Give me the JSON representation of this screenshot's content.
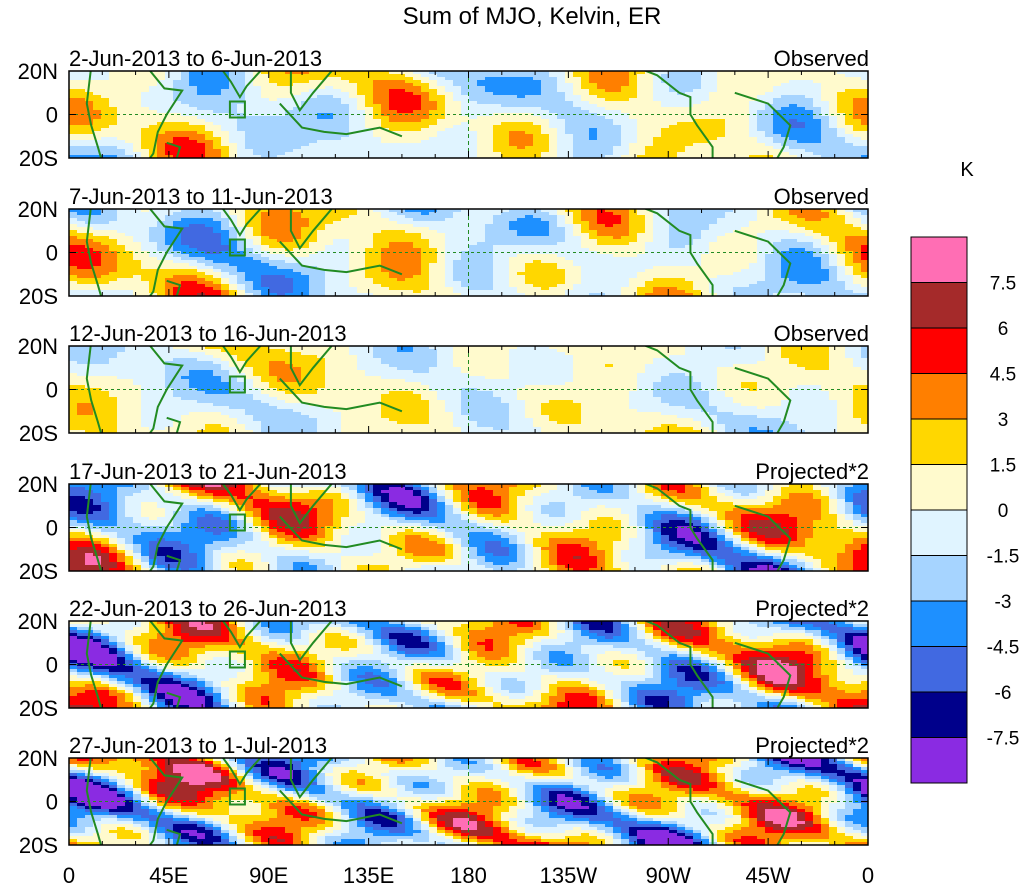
{
  "chart_data": {
    "type": "heatmap",
    "title": "Sum of MJO, Kelvin, ER",
    "units": "K",
    "x_ticks": [
      "0",
      "45E",
      "90E",
      "135E",
      "180",
      "135W",
      "90W",
      "45W",
      "0"
    ],
    "y_ticks": [
      "20N",
      "0",
      "20S"
    ],
    "lon_range": [
      0,
      360
    ],
    "lat_range": [
      -20,
      20
    ],
    "colorbar": {
      "levels": [
        "7.5",
        "6",
        "4.5",
        "3",
        "1.5",
        "0",
        "-1.5",
        "-3",
        "-4.5",
        "-6",
        "-7.5"
      ],
      "colors": [
        "#ff6eb4",
        "#a52a2a",
        "#ff0000",
        "#ff7f00",
        "#ffd700",
        "#fffacd",
        "#e0f4ff",
        "#a6d4ff",
        "#1e90ff",
        "#4169e1",
        "#00008b",
        "#8a2be2"
      ]
    },
    "panels": [
      {
        "period": "2-Jun-2013 to 6-Jun-2013",
        "label": "Observed"
      },
      {
        "period": "7-Jun-2013 to 11-Jun-2013",
        "label": "Observed"
      },
      {
        "period": "12-Jun-2013 to 16-Jun-2013",
        "label": "Observed"
      },
      {
        "period": "17-Jun-2013 to 21-Jun-2013",
        "label": "Projected*2"
      },
      {
        "period": "22-Jun-2013 to 26-Jun-2013",
        "label": "Projected*2"
      },
      {
        "period": "27-Jun-2013 to 1-Jul-2013",
        "label": "Projected*2"
      }
    ]
  }
}
